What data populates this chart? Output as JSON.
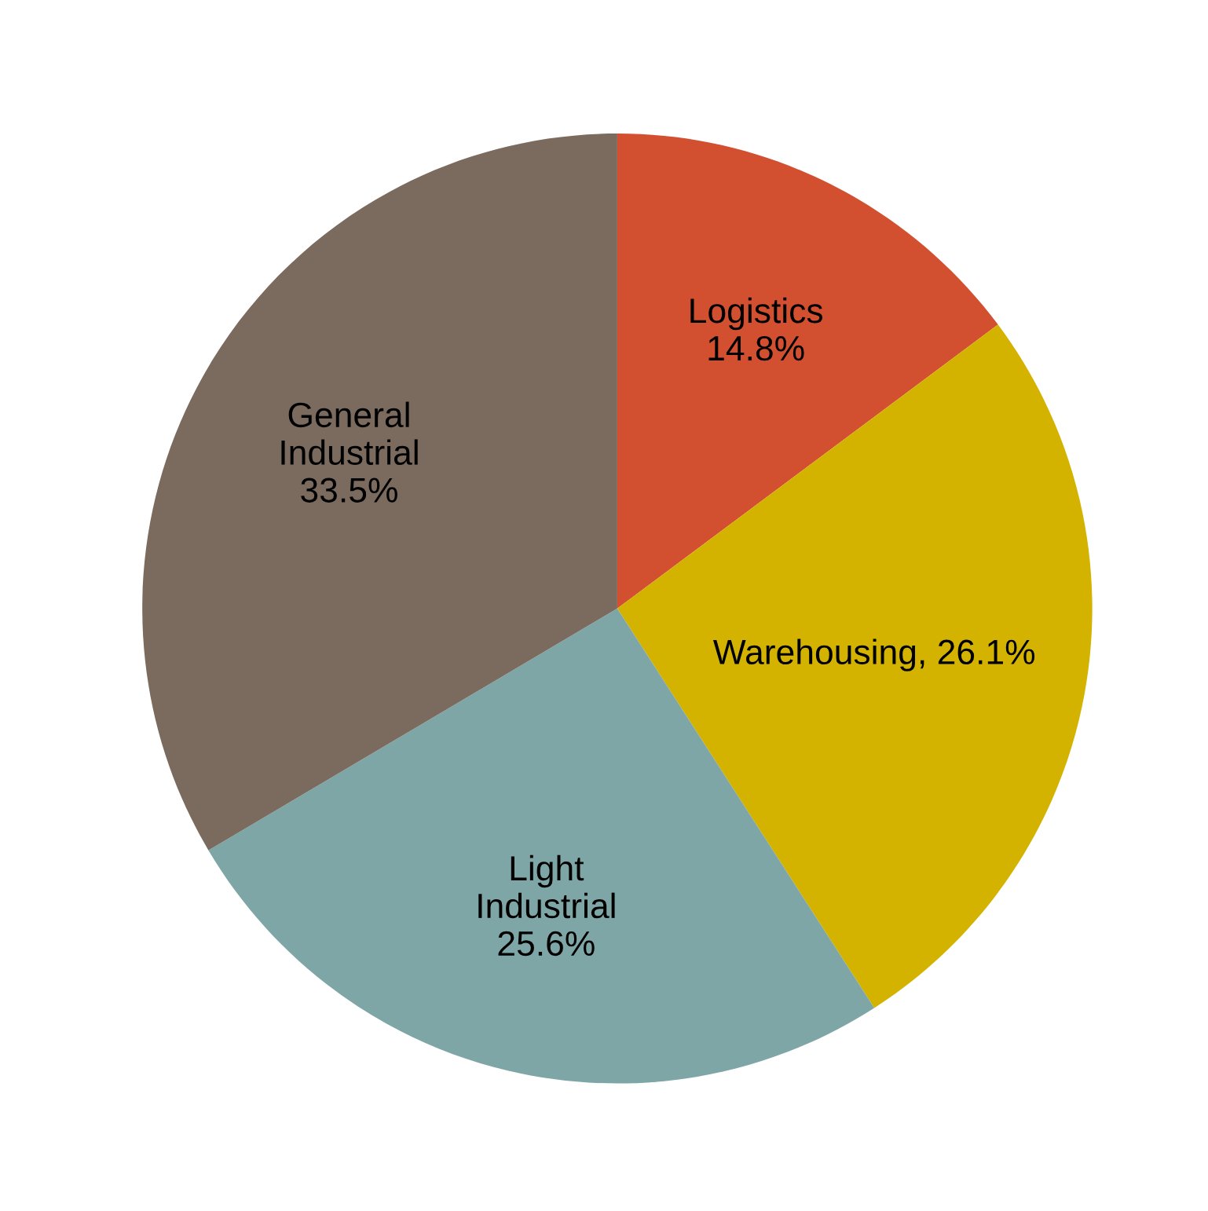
{
  "chart_data": {
    "type": "pie",
    "categories": [
      "Logistics",
      "Warehousing",
      "Light\nIndustrial",
      "General\nIndustrial"
    ],
    "values": [
      14.8,
      26.1,
      25.6,
      33.5
    ],
    "value_labels": [
      "14.8%",
      "26.1%",
      "25.6%",
      "33.5%"
    ],
    "colors": [
      "#d24f30",
      "#d4b300",
      "#7fa6a6",
      "#7b6a5e"
    ],
    "legend": false
  }
}
